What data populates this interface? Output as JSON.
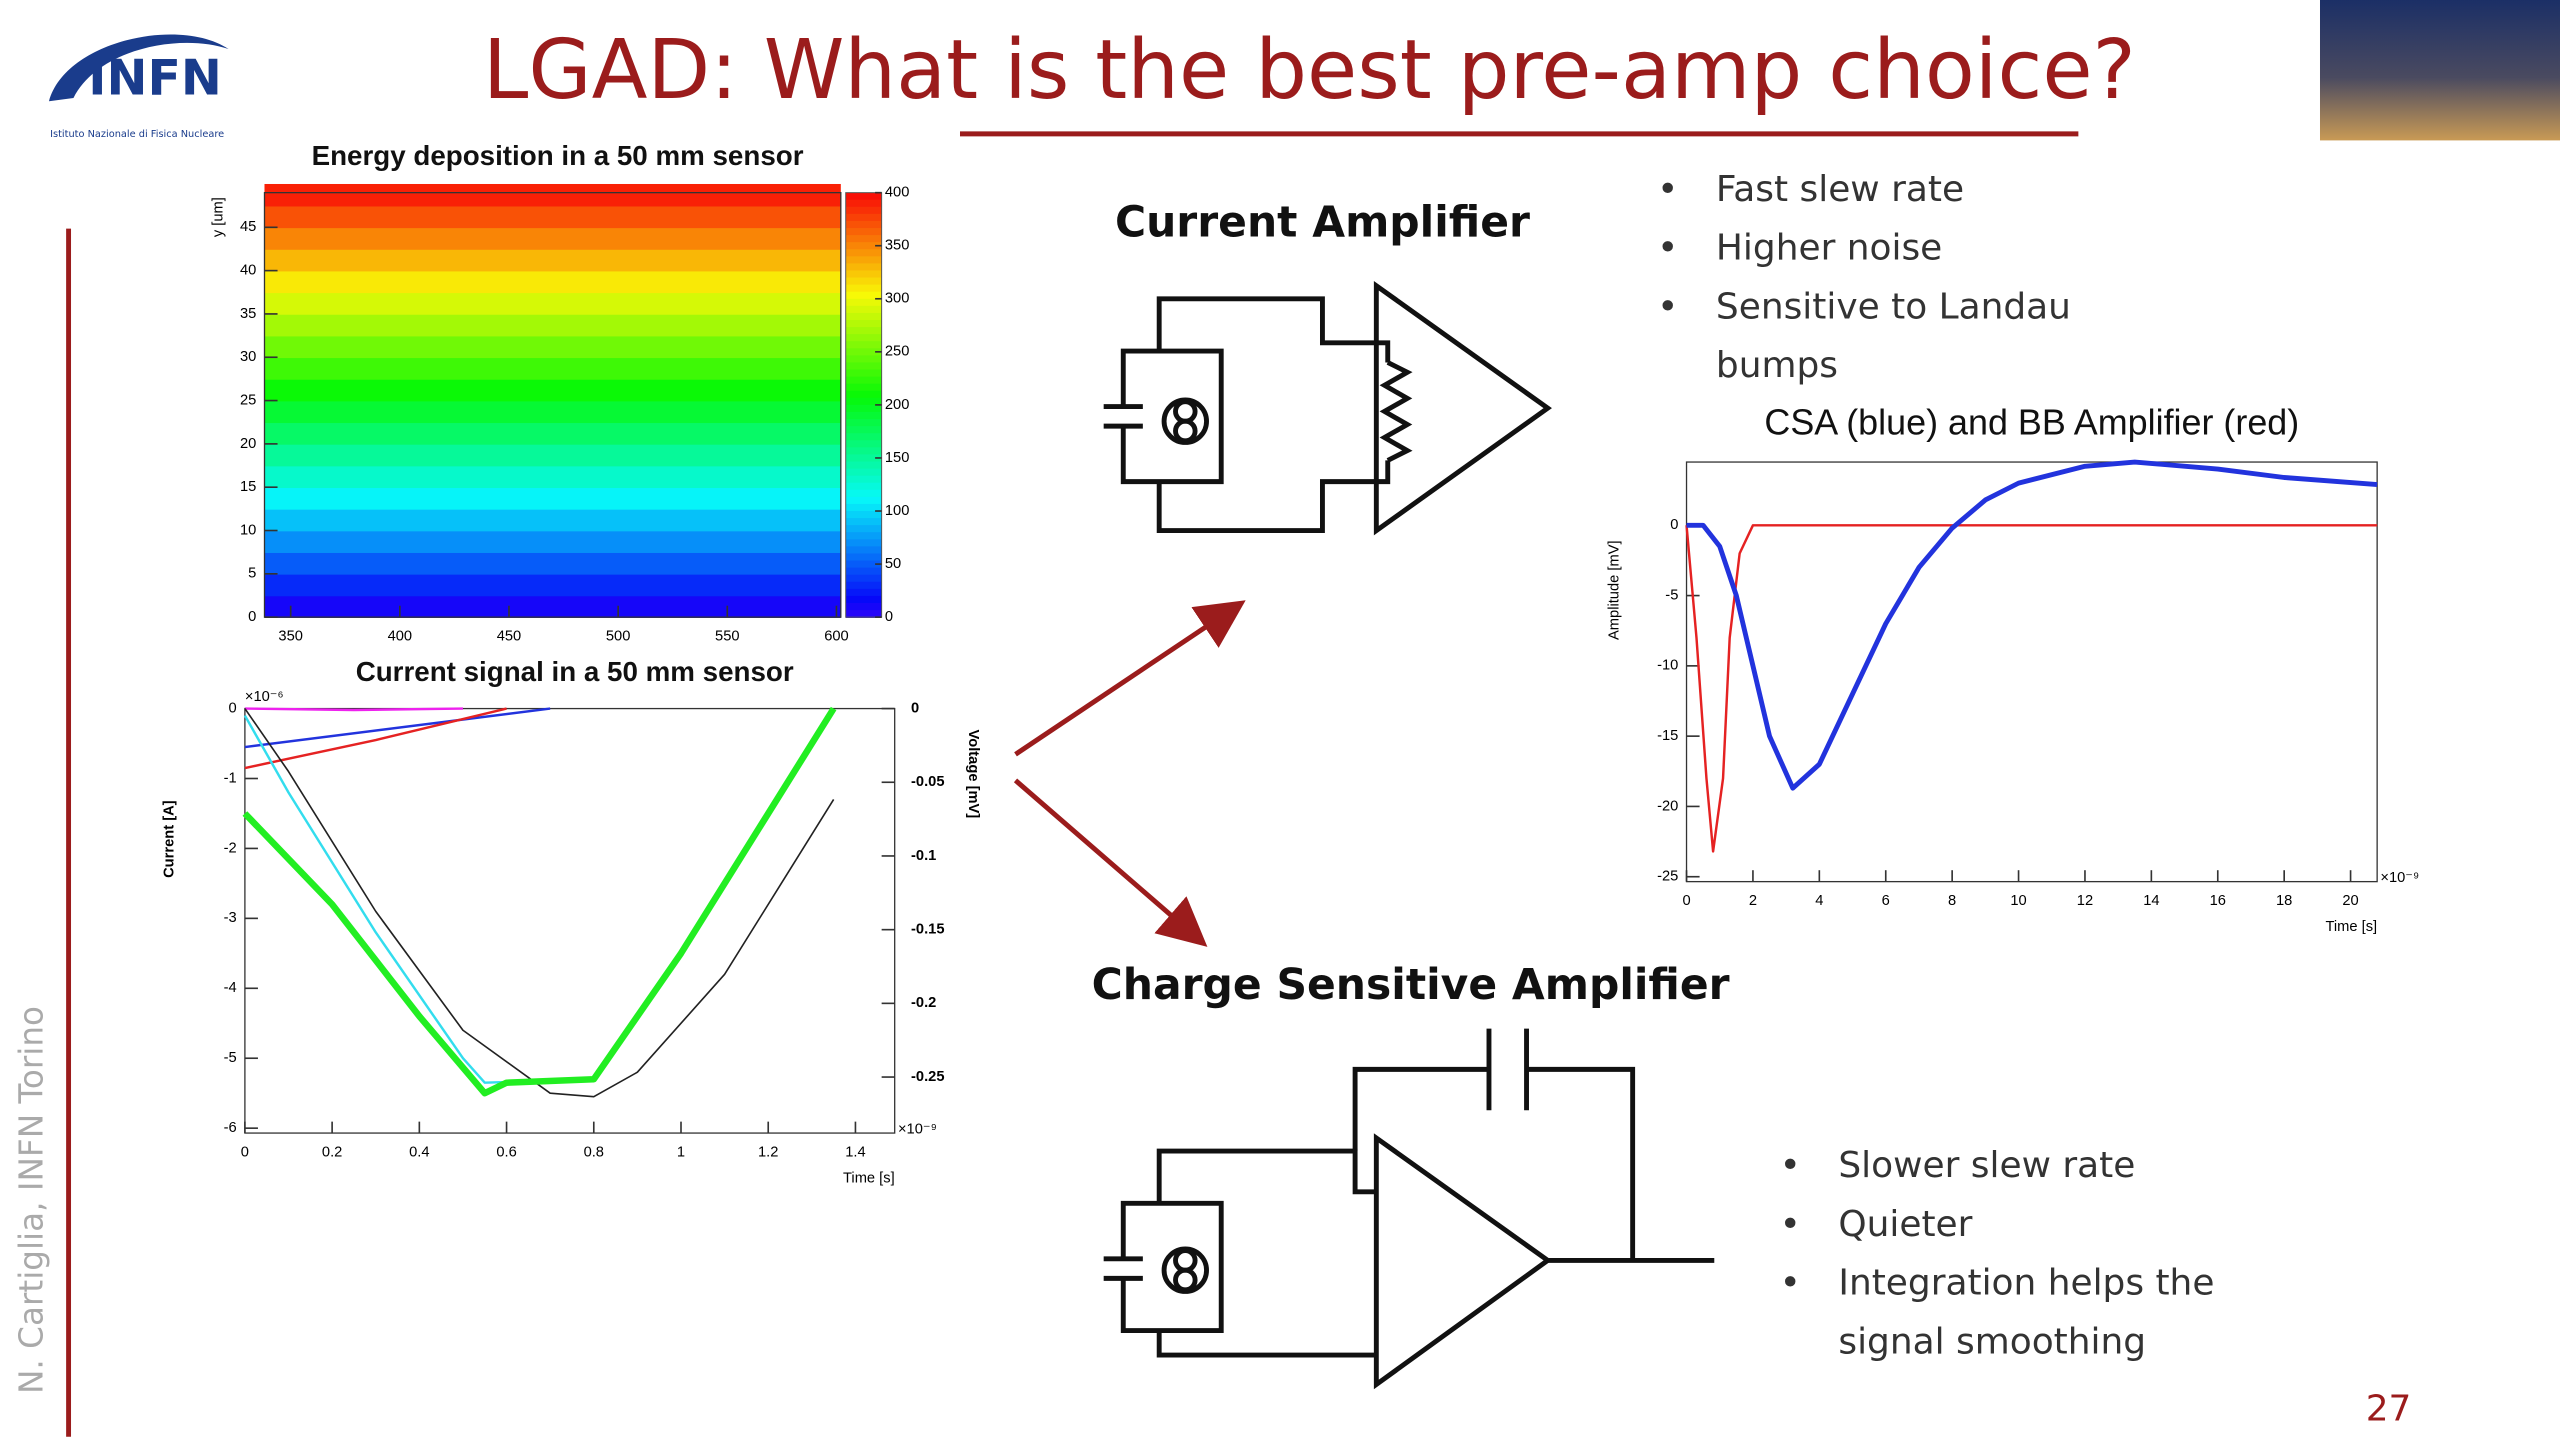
{
  "slide": {
    "title": "LGAD: What is the best pre-amp choice?",
    "logo_text": "INFN",
    "logo_subtitle": "Istituto Nazionale di Fisica Nucleare",
    "author": "N. Cartiglia,  INFN Torino",
    "page_number": "27",
    "current_amplifier": {
      "heading": "Current Amplifier",
      "bullets": [
        "Fast slew rate",
        "Higher noise",
        "Sensitive to Landau bumps"
      ]
    },
    "charge_amplifier": {
      "heading": "Charge Sensitive Amplifier",
      "bullets": [
        "Slower slew rate",
        "Quieter",
        "Integration helps the signal smoothing"
      ]
    }
  },
  "chart_data": [
    {
      "type": "heatmap",
      "title": "Energy deposition in a 50 mm sensor",
      "y_label": "y [um]",
      "xlim": [
        338,
        602
      ],
      "ylim": [
        0,
        49
      ],
      "xticks": [
        350,
        400,
        450,
        500,
        550,
        600
      ],
      "yticks": [
        0,
        5,
        10,
        15,
        20,
        25,
        30,
        35,
        40,
        45
      ],
      "zlim": [
        0,
        400
      ],
      "zticks": [
        0,
        50,
        100,
        150,
        200,
        250,
        300,
        350,
        400
      ],
      "y": [
        1.25,
        3.75,
        6.25,
        8.75,
        11.25,
        13.75,
        16.25,
        18.75,
        21.25,
        23.75,
        26.25,
        28.75,
        31.25,
        33.75,
        36.25,
        38.75,
        41.25,
        43.75,
        46.25,
        48.75
      ],
      "values": [
        10,
        30,
        50,
        70,
        90,
        110,
        130,
        150,
        170,
        190,
        210,
        230,
        250,
        270,
        290,
        310,
        330,
        350,
        370,
        390
      ]
    },
    {
      "type": "line",
      "title": "Current signal in a 50 mm sensor",
      "x_label": "Time [s]",
      "y_label": "Current [A]",
      "y2_label": "Voltage [mV]",
      "x_multiplier": "×10⁻⁹",
      "y_multiplier": "×10⁻⁶",
      "xlim": [
        0,
        1.49
      ],
      "ylim": [
        -6.07,
        0
      ],
      "y2lim": [
        -0.288,
        0
      ],
      "xticks": [
        0,
        0.2,
        0.4,
        0.6,
        0.8,
        1,
        1.2,
        1.4
      ],
      "yticks": [
        0,
        -1,
        -2,
        -3,
        -4,
        -5,
        -6
      ],
      "y2ticks": [
        0,
        -0.05,
        -0.1,
        -0.15,
        -0.2,
        -0.25
      ],
      "series": [
        {
          "color": "#ee22ee",
          "width": 1.5,
          "x": [
            0,
            0.25,
            0.5
          ],
          "values": [
            0,
            -0.02,
            0
          ]
        },
        {
          "color": "#2233dd",
          "width": 1.5,
          "x": [
            0,
            0.7
          ],
          "values": [
            -0.55,
            0
          ]
        },
        {
          "color": "#e52222",
          "width": 1.5,
          "x": [
            0,
            0.3,
            0.6
          ],
          "values": [
            -0.85,
            -0.45,
            0
          ]
        },
        {
          "color": "#33ddee",
          "width": 1.5,
          "x": [
            0,
            0.1,
            0.3,
            0.5,
            0.55,
            0.8
          ],
          "values": [
            -0.1,
            -1.2,
            -3.2,
            -5,
            -5.35,
            -5.3
          ]
        },
        {
          "color": "#222222",
          "width": 1,
          "x": [
            0,
            0.1,
            0.3,
            0.5,
            0.7,
            0.8,
            0.9,
            1.1,
            1.35
          ],
          "values": [
            0,
            -0.9,
            -2.9,
            -4.6,
            -5.5,
            -5.55,
            -5.2,
            -3.8,
            -1.3
          ]
        },
        {
          "color": "#22ee22",
          "width": 4,
          "x": [
            0,
            0.2,
            0.4,
            0.55,
            0.6,
            0.8,
            1,
            1.2,
            1.35
          ],
          "values": [
            -1.5,
            -2.8,
            -4.4,
            -5.5,
            -5.35,
            -5.3,
            -3.5,
            -1.5,
            0
          ]
        }
      ]
    },
    {
      "type": "line",
      "title": "CSA (blue) and BB Amplifier (red)",
      "x_label": "Time [s]",
      "y_label": "Amplitude [mV]",
      "x_multiplier": "×10⁻⁹",
      "xlim": [
        0,
        20.8
      ],
      "ylim": [
        -25.35,
        4.5
      ],
      "xticks": [
        0,
        2,
        4,
        6,
        8,
        10,
        12,
        14,
        16,
        18,
        20
      ],
      "yticks": [
        0,
        -5,
        -10,
        -15,
        -20,
        -25
      ],
      "series": [
        {
          "color": "#e52222",
          "width": 1.5,
          "x": [
            0,
            0.3,
            0.6,
            0.8,
            1.1,
            1.3,
            1.6,
            2,
            20.8
          ],
          "values": [
            0,
            -8,
            -18,
            -23.2,
            -18,
            -8,
            -2,
            0,
            0
          ]
        },
        {
          "color": "#2233dd",
          "width": 3,
          "x": [
            0,
            0.5,
            1,
            1.5,
            2,
            2.5,
            3.2,
            4,
            5,
            6,
            7,
            8,
            9,
            10,
            12,
            13.5,
            16,
            18,
            20.8
          ],
          "values": [
            0,
            0,
            -1.5,
            -5,
            -10,
            -15,
            -18.7,
            -17,
            -12,
            -7,
            -3,
            -0.2,
            1.8,
            3,
            4.2,
            4.5,
            4,
            3.4,
            2.9
          ]
        }
      ]
    }
  ]
}
